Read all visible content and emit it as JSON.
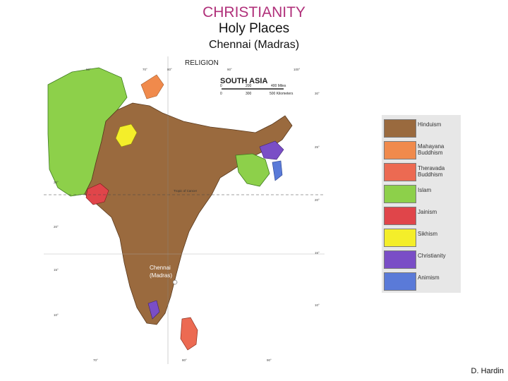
{
  "header": {
    "title": "CHRISTIANITY",
    "subtitle": "Holy Places",
    "place": "Chennai (Madras)"
  },
  "map": {
    "heading": "RELIGION",
    "region": "SOUTH ASIA",
    "scale_miles": [
      "0",
      "200",
      "400 Miles"
    ],
    "scale_km": [
      "0",
      "300",
      "500 Kilometers"
    ],
    "tropic_label": "Tropic of Cancer",
    "top_longitudes": [
      "60°",
      "70°",
      "80°",
      "90°",
      "100°"
    ],
    "bottom_longitudes": [
      "70°",
      "80°",
      "90°"
    ],
    "left_latitudes": [
      "25°",
      "20°",
      "15°",
      "10°"
    ],
    "right_latitudes": [
      "30°",
      "25°",
      "20°",
      "15°",
      "10°"
    ],
    "marker_label_line1": "Chennai",
    "marker_label_line2": "(Madras)"
  },
  "legend": {
    "items": [
      {
        "label": "Hinduism",
        "color": "#9a6a3e"
      },
      {
        "label": "Mahayana Buddhism",
        "color": "#f08a4c"
      },
      {
        "label": "Theravada Buddhism",
        "color": "#ec6a52"
      },
      {
        "label": "Islam",
        "color": "#8dd04a"
      },
      {
        "label": "Jainism",
        "color": "#e0454a"
      },
      {
        "label": "Sikhism",
        "color": "#f4ee2a"
      },
      {
        "label": "Christianity",
        "color": "#7a4ec6"
      },
      {
        "label": "Animism",
        "color": "#5a7ad8"
      }
    ]
  },
  "footer": {
    "author": "D. Hardin"
  }
}
